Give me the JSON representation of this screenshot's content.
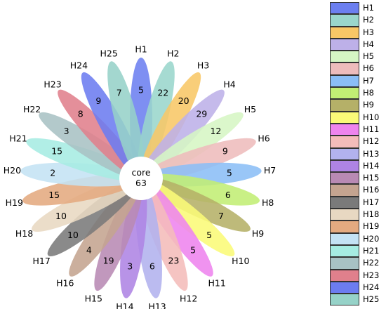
{
  "chart_data": {
    "type": "flower-venn",
    "core": {
      "label": "core",
      "value": 63
    },
    "petals": [
      {
        "name": "H1",
        "value": 5,
        "color": "#6c7ff0"
      },
      {
        "name": "H2",
        "value": 22,
        "color": "#9ad6cc"
      },
      {
        "name": "H3",
        "value": 20,
        "color": "#f8c766"
      },
      {
        "name": "H4",
        "value": 29,
        "color": "#bdb0e8"
      },
      {
        "name": "H5",
        "value": 12,
        "color": "#d6f6c4"
      },
      {
        "name": "H6",
        "value": 9,
        "color": "#eebcbc"
      },
      {
        "name": "H7",
        "value": 5,
        "color": "#8bbef6"
      },
      {
        "name": "H8",
        "value": 6,
        "color": "#c2ee74"
      },
      {
        "name": "H9",
        "value": 7,
        "color": "#b5b068"
      },
      {
        "name": "H10",
        "value": 5,
        "color": "#fafa78"
      },
      {
        "name": "H11",
        "value": 5,
        "color": "#ee84ee"
      },
      {
        "name": "H12",
        "value": 23,
        "color": "#f4bcba"
      },
      {
        "name": "H13",
        "value": 6,
        "color": "#b2b2ee"
      },
      {
        "name": "H14",
        "value": 3,
        "color": "#ae84e4"
      },
      {
        "name": "H15",
        "value": 19,
        "color": "#b88ab4"
      },
      {
        "name": "H16",
        "value": 4,
        "color": "#c4a490"
      },
      {
        "name": "H17",
        "value": 10,
        "color": "#7a7a7a"
      },
      {
        "name": "H18",
        "value": 10,
        "color": "#e8d8c2"
      },
      {
        "name": "H19",
        "value": 15,
        "color": "#e4aa80"
      },
      {
        "name": "H20",
        "value": 2,
        "color": "#c4e2f4"
      },
      {
        "name": "H21",
        "value": 15,
        "color": "#a6ece2"
      },
      {
        "name": "H22",
        "value": 3,
        "color": "#a8c2c4"
      },
      {
        "name": "H23",
        "value": 8,
        "color": "#e0808c"
      },
      {
        "name": "H24",
        "value": 9,
        "color": "#6c7cf0"
      },
      {
        "name": "H25",
        "value": 7,
        "color": "#96d2c8"
      }
    ]
  }
}
